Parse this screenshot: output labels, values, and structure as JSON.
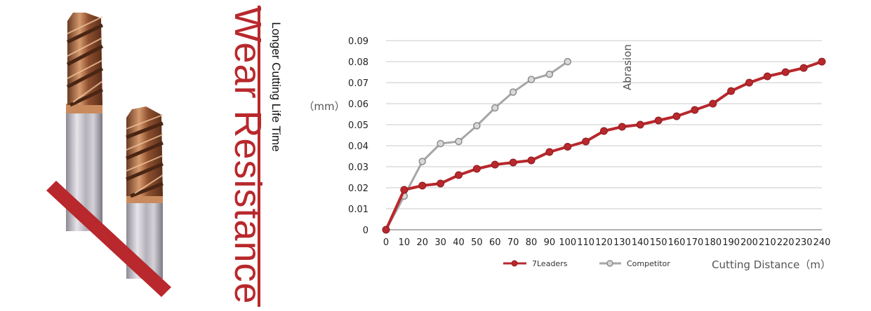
{
  "heading": {
    "title": "Wear Resistance",
    "subtitle": "Longer Cutting Life Time"
  },
  "colors": {
    "accent": "#b8282c",
    "competitor": "#a6a6a6",
    "grid": "#c8c8c8"
  },
  "chart_data": {
    "type": "line",
    "xlabel": "Cutting Distance（m）",
    "ylabel_top": "Abrasion",
    "ylabel_unit": "（mm）",
    "ylim": [
      0,
      0.09
    ],
    "xlim": [
      0,
      240
    ],
    "grid": "horizontal",
    "legend_position": "bottom-right",
    "y_ticks": [
      "0",
      "0.01",
      "0.02",
      "0.03",
      "0.04",
      "0.05",
      "0.06",
      "0.07",
      "0.08",
      "0.09"
    ],
    "x_ticks": [
      "0",
      "10",
      "20",
      "30",
      "40",
      "50",
      "60",
      "70",
      "80",
      "90",
      "100",
      "110",
      "120",
      "130",
      "140",
      "150",
      "160",
      "170",
      "180",
      "190",
      "200",
      "210",
      "220",
      "230",
      "240"
    ],
    "series": [
      {
        "name": "7Leaders",
        "color": "#b8282c",
        "x": [
          0,
          10,
          20,
          30,
          40,
          50,
          60,
          70,
          80,
          90,
          100,
          110,
          120,
          130,
          140,
          150,
          160,
          170,
          180,
          190,
          200,
          210,
          220,
          230,
          240
        ],
        "y": [
          0,
          0.019,
          0.021,
          0.022,
          0.026,
          0.029,
          0.031,
          0.032,
          0.033,
          0.037,
          0.0395,
          0.042,
          0.047,
          0.049,
          0.05,
          0.052,
          0.054,
          0.057,
          0.06,
          0.066,
          0.07,
          0.073,
          0.075,
          0.077,
          0.08
        ]
      },
      {
        "name": "Competitor",
        "color": "#a6a6a6",
        "x": [
          0,
          10,
          20,
          30,
          40,
          50,
          60,
          70,
          80,
          90,
          100
        ],
        "y": [
          0,
          0.016,
          0.0325,
          0.041,
          0.042,
          0.0495,
          0.058,
          0.0655,
          0.0715,
          0.074,
          0.08
        ]
      }
    ]
  }
}
